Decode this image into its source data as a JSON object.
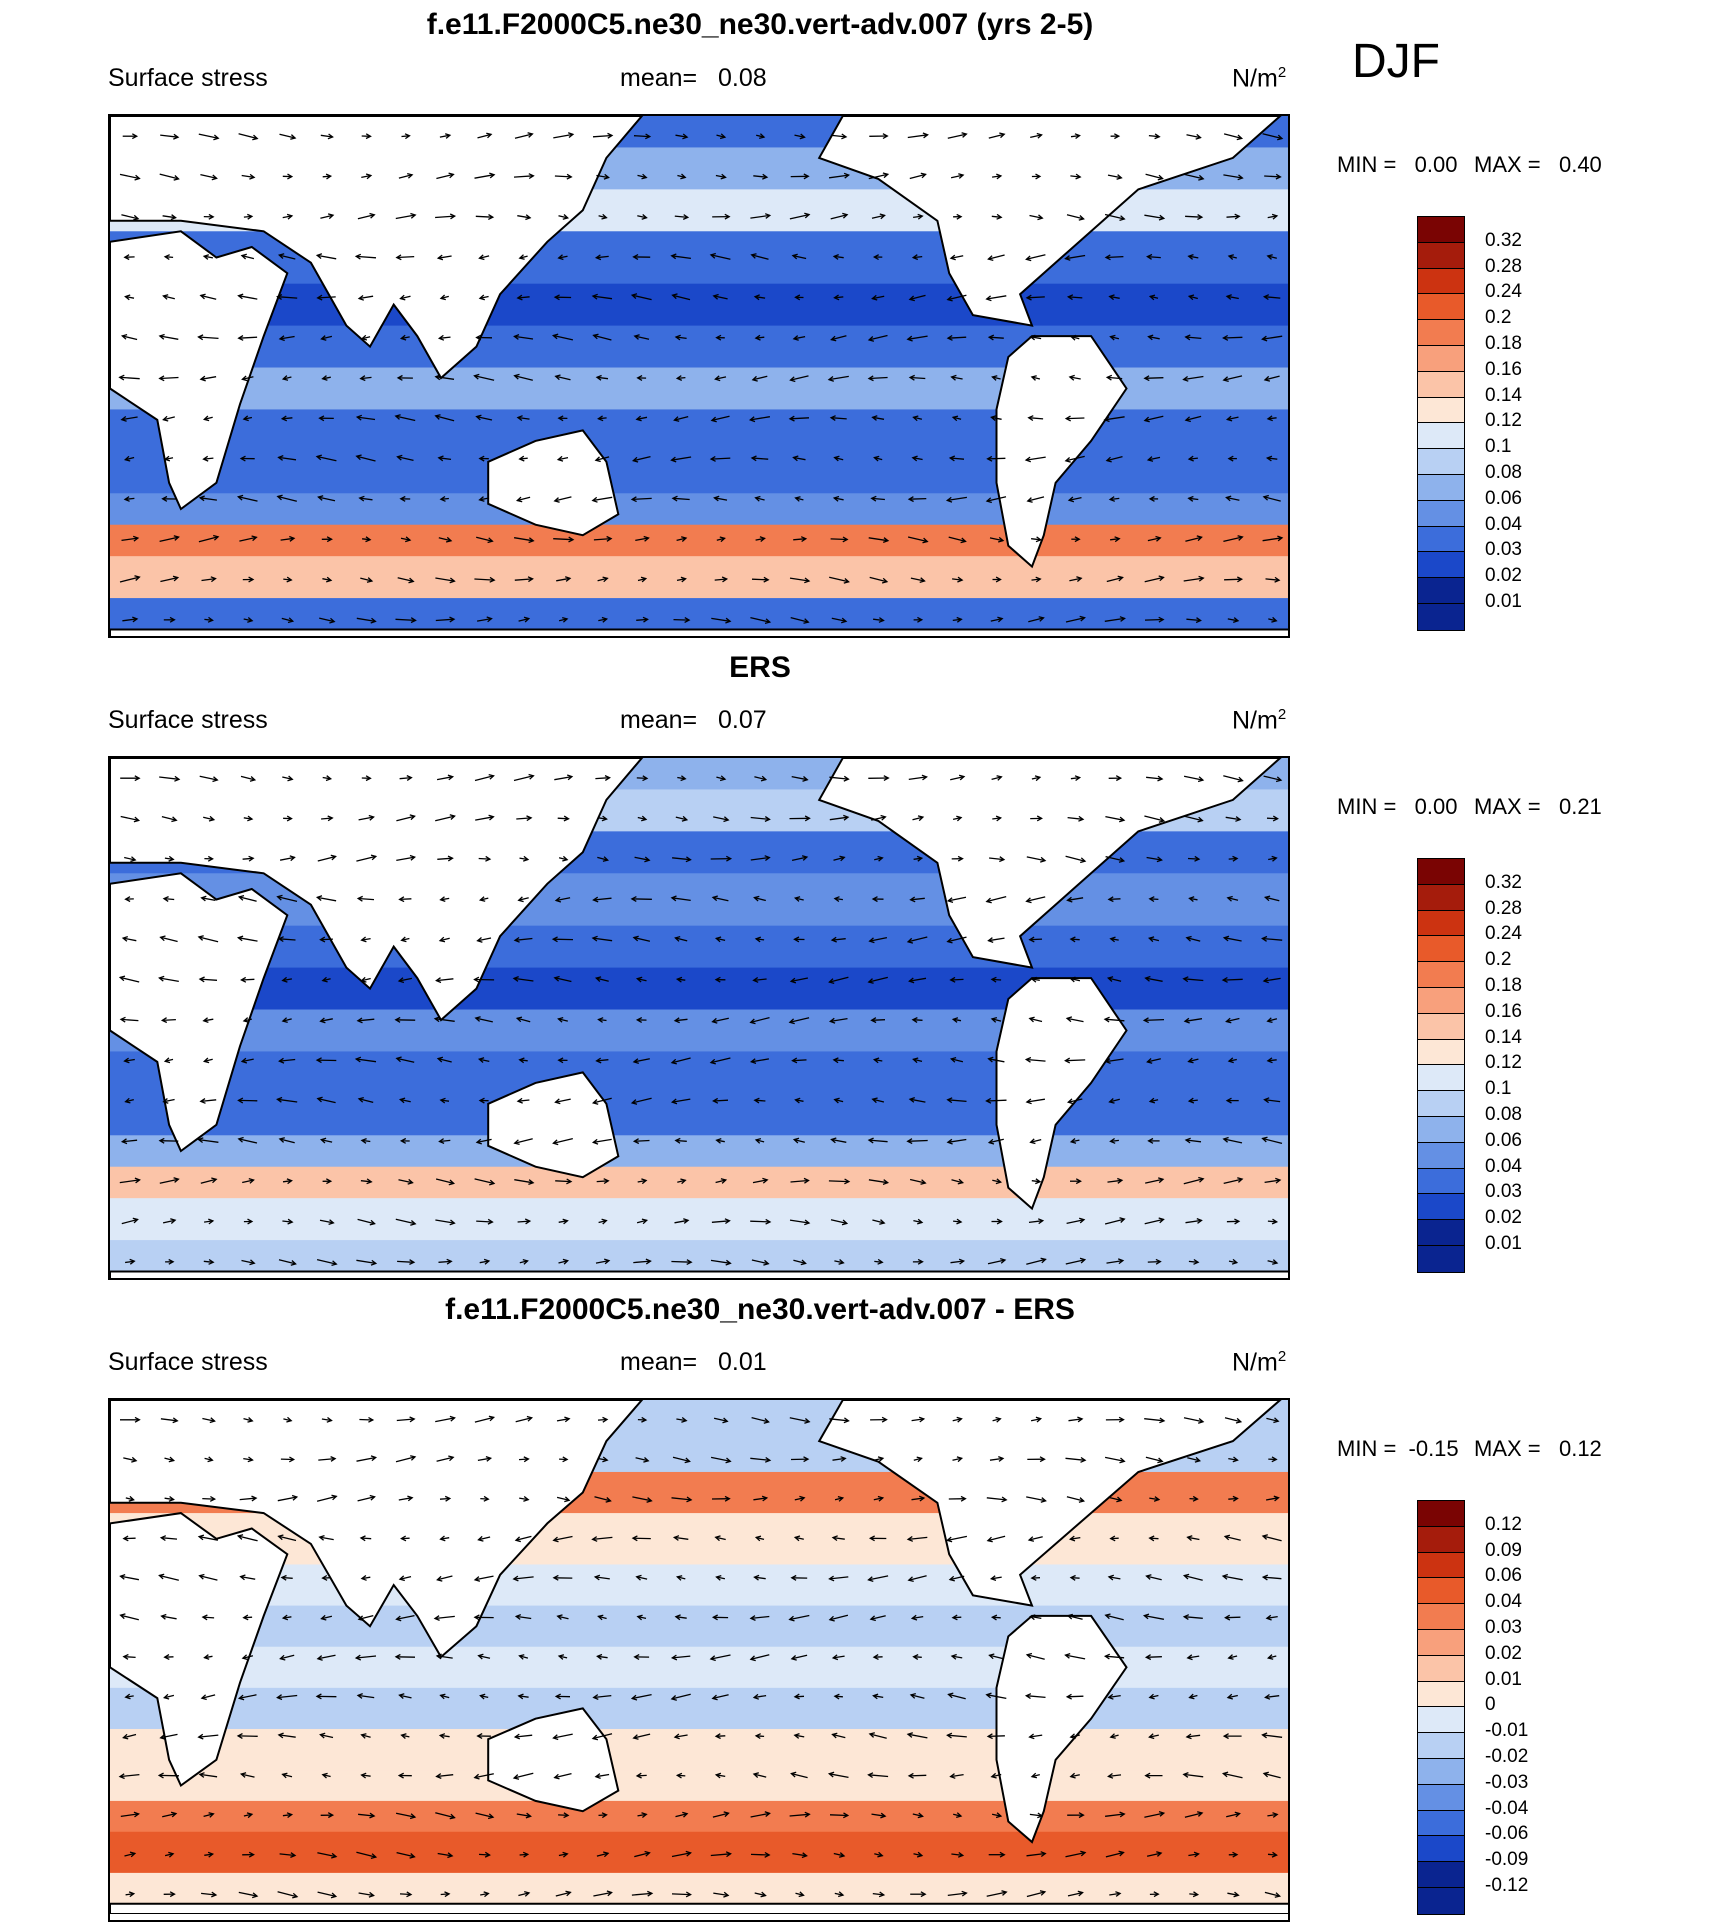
{
  "season": "DJF",
  "units_base": "N/m",
  "units_exp": "2",
  "panels": [
    {
      "title": "f.e11.F2000C5.ne30_ne30.vert-adv.007 (yrs 2-5)",
      "variable": "Surface stress",
      "mean_text": "mean=   0.08",
      "min_text": "MIN =   0.00",
      "max_text": "MAX =   0.40",
      "levels": [
        "0.32",
        "0.28",
        "0.24",
        "0.2",
        "0.18",
        "0.16",
        "0.14",
        "0.12",
        "0.1",
        "0.08",
        "0.06",
        "0.04",
        "0.03",
        "0.02",
        "0.01"
      ]
    },
    {
      "title": "ERS",
      "variable": "Surface stress",
      "mean_text": "mean=   0.07",
      "min_text": "MIN =   0.00",
      "max_text": "MAX =   0.21",
      "levels": [
        "0.32",
        "0.28",
        "0.24",
        "0.2",
        "0.18",
        "0.16",
        "0.14",
        "0.12",
        "0.1",
        "0.08",
        "0.06",
        "0.04",
        "0.03",
        "0.02",
        "0.01"
      ]
    },
    {
      "title": "f.e11.F2000C5.ne30_ne30.vert-adv.007 - ERS",
      "variable": "Surface stress",
      "mean_text": "mean=   0.01",
      "min_text": "MIN =  -0.15",
      "max_text": "MAX =   0.12",
      "levels": [
        "0.12",
        "0.09",
        "0.06",
        "0.04",
        "0.03",
        "0.02",
        "0.01",
        "0",
        "-0.01",
        "-0.02",
        "-0.03",
        "-0.04",
        "-0.06",
        "-0.09",
        "-0.12"
      ]
    }
  ],
  "colors": {
    "scale": [
      "#7a0403",
      "#a51c0c",
      "#cc3311",
      "#e85a2a",
      "#f27c50",
      "#f8a07c",
      "#fbc4a8",
      "#fde7d6",
      "#dde9f8",
      "#b8d0f3",
      "#8eb2ec",
      "#6490e4",
      "#3c6ddb",
      "#1b48c9",
      "#0a2490"
    ],
    "land": "#ffffff",
    "coast": "#000000"
  },
  "map_regions": [
    "continents",
    "ocean"
  ]
}
